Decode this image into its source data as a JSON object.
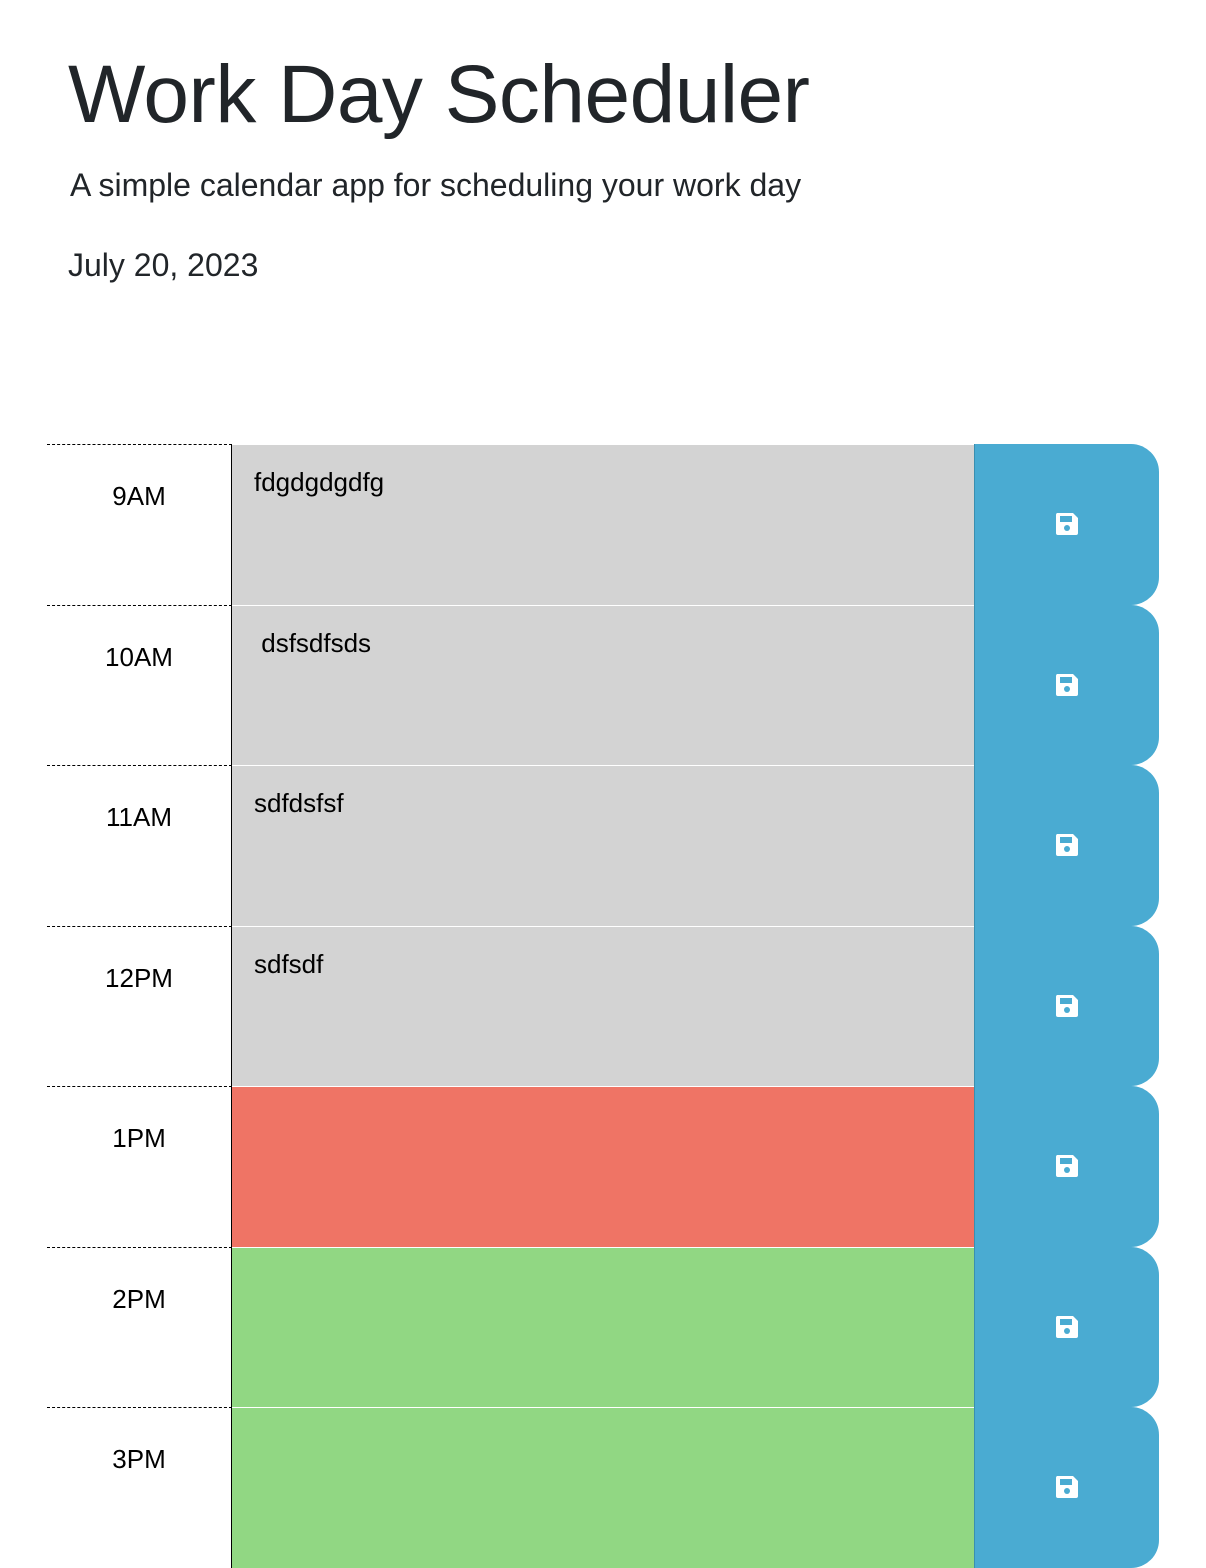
{
  "header": {
    "title": "Work Day Scheduler",
    "subtitle": "A simple calendar app for scheduling your work day",
    "current_day": "July 20, 2023"
  },
  "colors": {
    "past": "#d3d3d3",
    "present": "#ef7465",
    "future": "#91d783",
    "save_button": "#4aabd2"
  },
  "timeblocks": [
    {
      "hour": "9AM",
      "text": "fdgdgdgdfg",
      "state": "past"
    },
    {
      "hour": "10AM",
      "text": " dsfsdfsds",
      "state": "past"
    },
    {
      "hour": "11AM",
      "text": "sdfdsfsf",
      "state": "past"
    },
    {
      "hour": "12PM",
      "text": "sdfsdf",
      "state": "past"
    },
    {
      "hour": "1PM",
      "text": "",
      "state": "present"
    },
    {
      "hour": "2PM",
      "text": "",
      "state": "future"
    },
    {
      "hour": "3PM",
      "text": "",
      "state": "future"
    }
  ],
  "icons": {
    "save": "floppy-disk-icon"
  }
}
